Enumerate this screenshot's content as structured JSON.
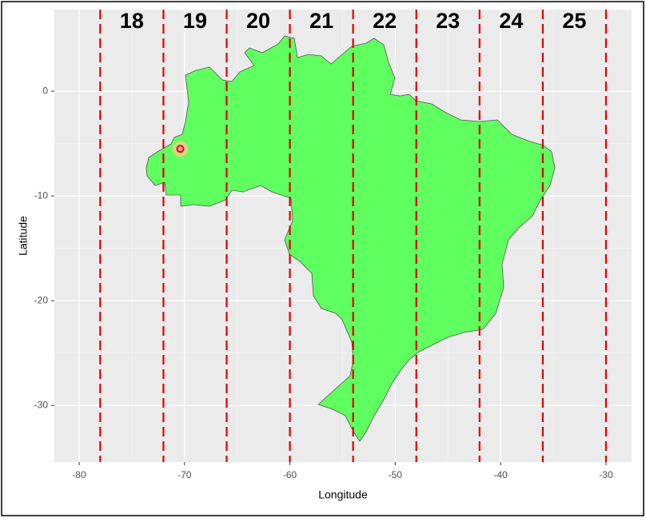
{
  "chart_data": {
    "type": "map",
    "x_label": "Longitude",
    "y_label": "Latitude",
    "xlim": [
      -82.35,
      -27.57
    ],
    "ylim": [
      -35.4,
      7.79
    ],
    "xticks": [
      -80,
      -70,
      -60,
      -50,
      -40,
      -30
    ],
    "yticks": [
      0,
      -10,
      -20,
      -30
    ],
    "grid": true,
    "zone_boundaries": [
      -78,
      -72,
      -66,
      -60,
      -54,
      -48,
      -42,
      -36,
      -30
    ],
    "zones": [
      18,
      19,
      20,
      21,
      22,
      23,
      24,
      25
    ],
    "boundary_color": "#e00000",
    "land_color": "#5eff5e",
    "point": {
      "x": -70.4,
      "y": -5.5,
      "color": "#e8001c"
    }
  }
}
